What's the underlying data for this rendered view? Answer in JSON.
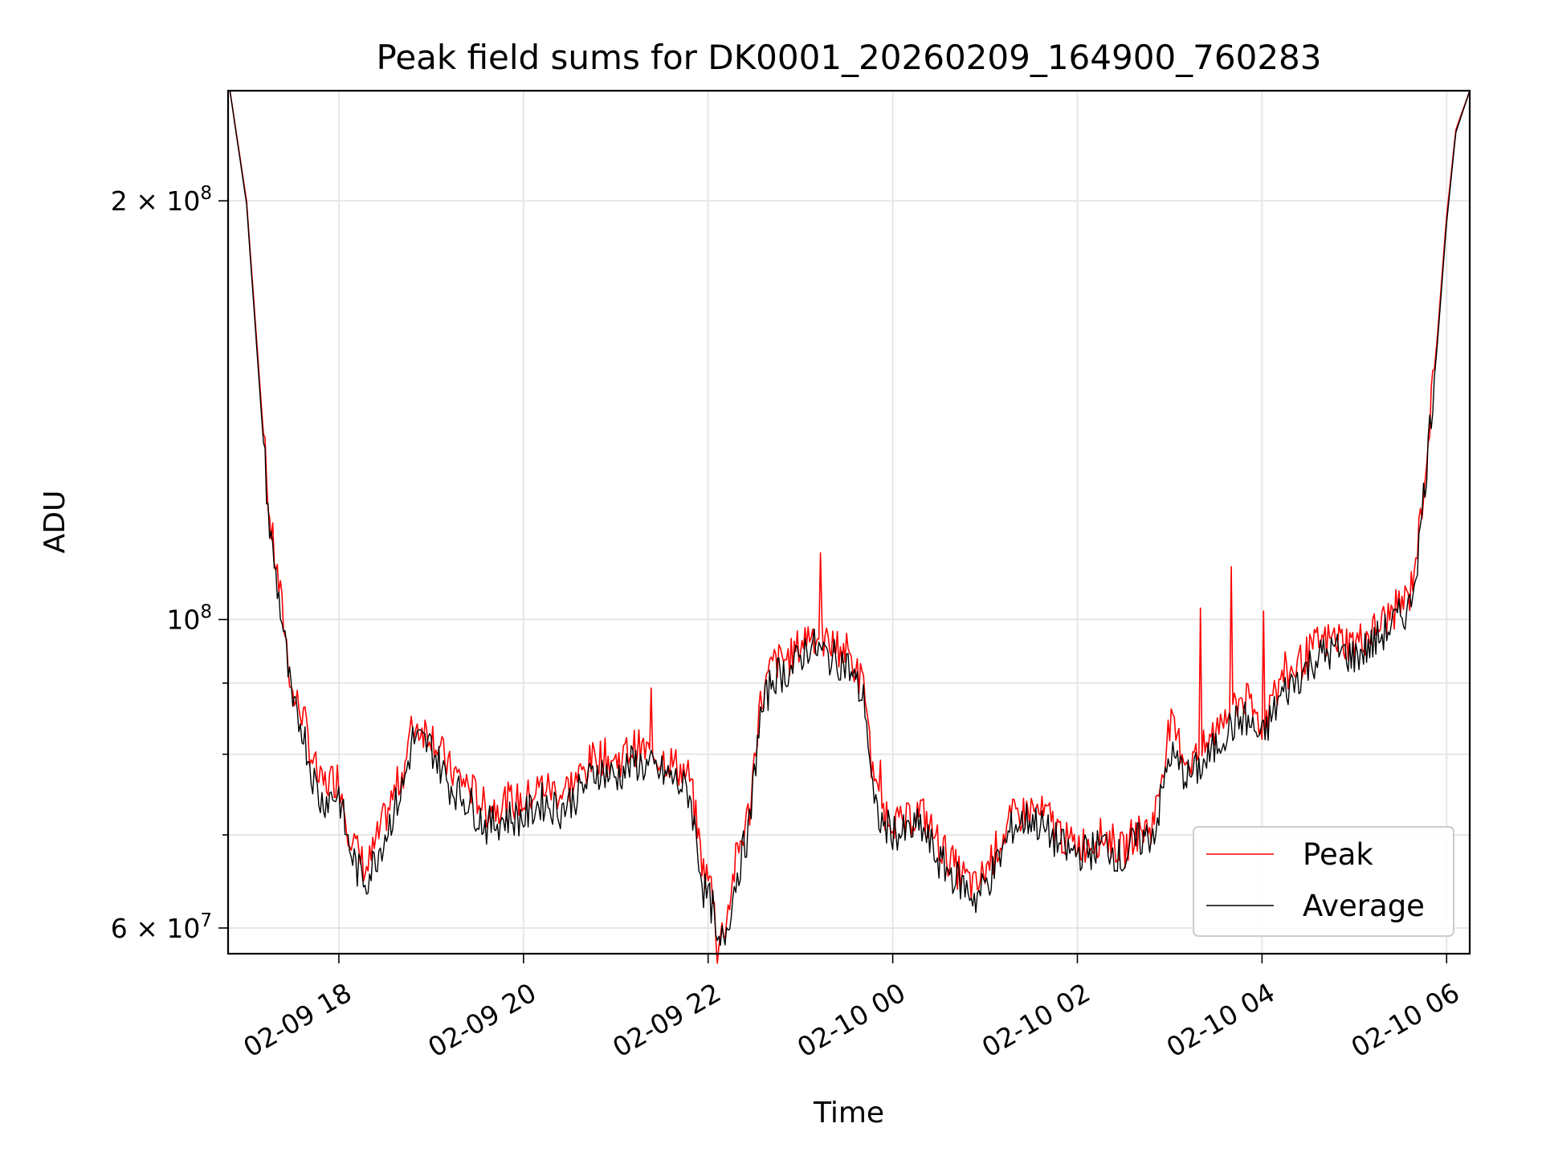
{
  "chart_data": {
    "type": "line",
    "title": "Peak field sums for DK0001_20260209_164900_760283",
    "xlabel": "Time",
    "ylabel": "ADU",
    "yscale": "log",
    "grid": true,
    "legend_position": "bottom-right",
    "xlim_hours": [
      16.8,
      30.25
    ],
    "ylim": [
      57500000,
      240000000
    ],
    "x_ticks": [
      {
        "hour": 18,
        "label": "02-09 18"
      },
      {
        "hour": 20,
        "label": "02-09 20"
      },
      {
        "hour": 22,
        "label": "02-09 22"
      },
      {
        "hour": 24,
        "label": "02-10 00"
      },
      {
        "hour": 26,
        "label": "02-10 02"
      },
      {
        "hour": 28,
        "label": "02-10 04"
      },
      {
        "hour": 30,
        "label": "02-10 06"
      }
    ],
    "y_major_ticks": [
      {
        "value": 60000000,
        "mantissa": "6",
        "base": "10",
        "exp": "7",
        "label": "6 × 10^7"
      },
      {
        "value": 100000000,
        "mantissa": "",
        "base": "10",
        "exp": "8",
        "label": "10^8"
      },
      {
        "value": 200000000,
        "mantissa": "2",
        "base": "10",
        "exp": "8",
        "label": "2 × 10^8"
      }
    ],
    "y_minor_ticks": [
      70000000,
      80000000,
      90000000
    ],
    "series": [
      {
        "name": "Peak",
        "color": "#ff0000",
        "x_hours": [
          16.82,
          17.0,
          17.25,
          17.4,
          17.5,
          17.6,
          17.7,
          17.8,
          18.0,
          18.1,
          18.2,
          18.3,
          18.5,
          18.7,
          18.8,
          19.0,
          19.2,
          19.4,
          19.6,
          19.8,
          20.0,
          20.2,
          20.4,
          20.6,
          20.8,
          21.0,
          21.2,
          21.4,
          21.6,
          21.8,
          21.95,
          22.05,
          22.1,
          22.2,
          22.3,
          22.45,
          22.55,
          22.7,
          22.9,
          23.1,
          23.3,
          23.5,
          23.7,
          23.8,
          23.9,
          24.1,
          24.3,
          24.5,
          24.7,
          24.9,
          25.1,
          25.3,
          25.5,
          25.7,
          25.9,
          26.1,
          26.3,
          26.5,
          26.6,
          26.8,
          26.85,
          27.0,
          27.2,
          27.4,
          27.6,
          27.8,
          28.0,
          28.2,
          28.4,
          28.6,
          28.8,
          29.0,
          29.2,
          29.4,
          29.6,
          29.7,
          29.8,
          29.9,
          30.0,
          30.1,
          30.25
        ],
        "values": [
          240000000,
          200000000,
          118000000,
          100000000,
          88000000,
          86000000,
          80000000,
          76000000,
          77000000,
          71000000,
          68000000,
          66000000,
          72000000,
          78000000,
          84000000,
          83000000,
          78000000,
          76000000,
          73000000,
          74000000,
          74000000,
          76000000,
          75000000,
          77000000,
          80000000,
          79000000,
          81000000,
          80000000,
          79000000,
          77000000,
          66000000,
          64000000,
          58000000,
          61000000,
          67000000,
          73000000,
          86000000,
          93000000,
          94000000,
          98000000,
          96000000,
          95000000,
          89000000,
          75000000,
          73000000,
          71000000,
          73000000,
          69000000,
          66000000,
          64000000,
          68000000,
          72000000,
          73000000,
          72000000,
          69000000,
          69000000,
          70000000,
          68000000,
          70000000,
          71000000,
          73000000,
          84000000,
          79000000,
          81000000,
          86000000,
          88000000,
          84000000,
          90000000,
          93000000,
          96000000,
          97000000,
          96000000,
          98000000,
          101000000,
          104000000,
          115000000,
          135000000,
          160000000,
          195000000,
          225000000,
          240000000
        ]
      },
      {
        "name": "Average",
        "color": "#000000",
        "x_hours": [
          16.82,
          17.0,
          17.25,
          17.4,
          17.5,
          17.6,
          17.7,
          17.8,
          18.0,
          18.1,
          18.2,
          18.3,
          18.5,
          18.7,
          18.8,
          19.0,
          19.2,
          19.4,
          19.6,
          19.8,
          20.0,
          20.2,
          20.4,
          20.6,
          20.8,
          21.0,
          21.2,
          21.4,
          21.6,
          21.8,
          21.95,
          22.05,
          22.1,
          22.2,
          22.3,
          22.45,
          22.55,
          22.7,
          22.9,
          23.1,
          23.3,
          23.5,
          23.7,
          23.8,
          23.9,
          24.1,
          24.3,
          24.5,
          24.7,
          24.9,
          25.1,
          25.3,
          25.5,
          25.7,
          25.9,
          26.1,
          26.3,
          26.5,
          26.6,
          26.8,
          26.85,
          27.0,
          27.2,
          27.4,
          27.6,
          27.8,
          28.0,
          28.2,
          28.4,
          28.6,
          28.8,
          29.0,
          29.2,
          29.4,
          29.6,
          29.7,
          29.8,
          29.9,
          30.0,
          30.1,
          30.25
        ],
        "values": [
          240000000,
          199000000,
          116000000,
          98000000,
          86000000,
          84000000,
          78000000,
          74000000,
          75000000,
          69000000,
          66000000,
          65000000,
          70000000,
          76000000,
          82000000,
          81000000,
          76000000,
          74000000,
          71000000,
          72000000,
          72000000,
          74000000,
          73000000,
          75000000,
          78000000,
          77000000,
          79000000,
          78000000,
          77000000,
          75000000,
          64000000,
          62000000,
          57500000,
          60000000,
          65000000,
          71000000,
          84000000,
          91000000,
          92000000,
          96000000,
          94000000,
          93000000,
          87000000,
          73000000,
          71000000,
          70000000,
          71000000,
          67000000,
          65000000,
          63000000,
          66000000,
          71000000,
          72000000,
          70000000,
          68000000,
          68000000,
          69000000,
          67000000,
          69000000,
          70000000,
          71000000,
          80000000,
          77000000,
          79000000,
          83000000,
          85000000,
          82000000,
          88000000,
          91000000,
          94000000,
          95000000,
          94000000,
          96000000,
          99000000,
          102000000,
          113000000,
          133000000,
          158000000,
          193000000,
          224000000,
          240000000
        ]
      }
    ]
  }
}
